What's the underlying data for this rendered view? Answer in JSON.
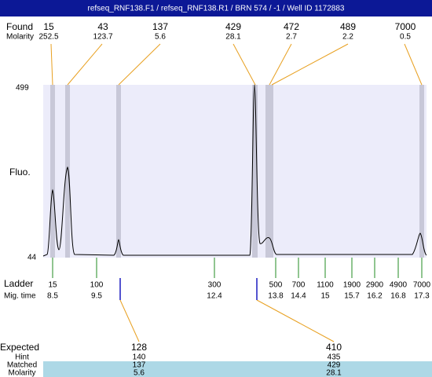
{
  "header": {
    "title": "refseq_RNF138.F1 / refseq_RNF138.R1 / BRN 574 / -1 / Well ID 1172883"
  },
  "found": {
    "label": "Found",
    "molarity_label": "Molarity",
    "peaks": [
      {
        "size": "15",
        "molarity": "252.5"
      },
      {
        "size": "43",
        "molarity": "123.7"
      },
      {
        "size": "137",
        "molarity": "5.6"
      },
      {
        "size": "429",
        "molarity": "28.1"
      },
      {
        "size": "472",
        "molarity": "2.7"
      },
      {
        "size": "489",
        "molarity": "2.2"
      },
      {
        "size": "7000",
        "molarity": "0.5"
      }
    ]
  },
  "plot": {
    "y_top": "499",
    "y_bottom": "44",
    "y_label": "Fluo."
  },
  "ladder": {
    "label": "Ladder",
    "time_label": "Mig. time",
    "items": [
      {
        "size": "15",
        "time": "8.5"
      },
      {
        "size": "100",
        "time": "9.5"
      },
      {
        "size": "300",
        "time": "12.4"
      },
      {
        "size": "500",
        "time": "13.8"
      },
      {
        "size": "700",
        "time": "14.4"
      },
      {
        "size": "1100",
        "time": "15"
      },
      {
        "size": "1900",
        "time": "15.7"
      },
      {
        "size": "2900",
        "time": "16.2"
      },
      {
        "size": "4900",
        "time": "16.8"
      },
      {
        "size": "7000",
        "time": "17.3"
      }
    ]
  },
  "expected": {
    "labels": [
      "Expected",
      "Hint",
      "Matched",
      "Molarity"
    ],
    "columns": [
      [
        "128",
        "140",
        "137",
        "5.6"
      ],
      [
        "410",
        "435",
        "429",
        "28.1"
      ]
    ]
  }
}
